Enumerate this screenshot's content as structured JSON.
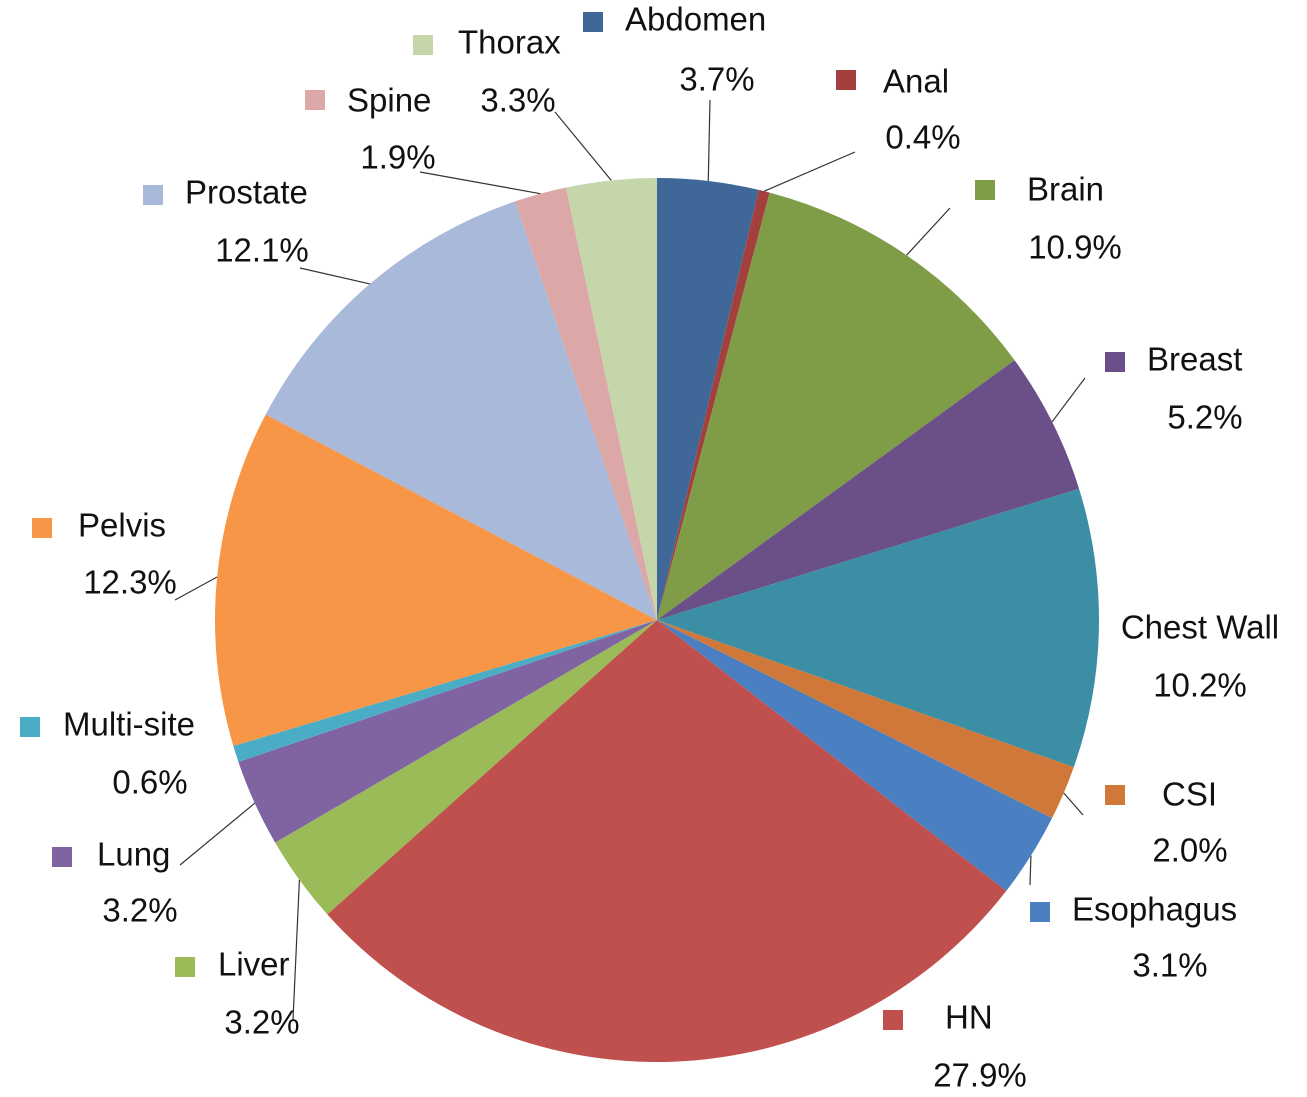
{
  "chart_data": {
    "type": "pie",
    "categories": [
      "Abdomen",
      "Anal",
      "Brain",
      "Breast",
      "Chest Wall",
      "CSI",
      "Esophagus",
      "HN",
      "Liver",
      "Lung",
      "Multi-site",
      "Pelvis",
      "Prostate",
      "Spine",
      "Thorax"
    ],
    "values": [
      3.7,
      0.4,
      10.9,
      5.2,
      10.2,
      2.0,
      3.1,
      27.9,
      3.2,
      3.2,
      0.6,
      12.3,
      12.1,
      1.9,
      3.3
    ],
    "value_labels": [
      "3.7%",
      "0.4%",
      "10.9%",
      "5.2%",
      "10.2%",
      "2.0%",
      "3.1%",
      "27.9%",
      "3.2%",
      "3.2%",
      "0.6%",
      "12.3%",
      "12.1%",
      "1.9%",
      "3.3%"
    ],
    "colors": [
      "#3f6899",
      "#a33f3d",
      "#7f9c46",
      "#6a4f88",
      "#3b8ea3",
      "#d0783a",
      "#4a7fc1",
      "#c0504d",
      "#9bbb59",
      "#8064a2",
      "#4bacc6",
      "#f79646",
      "#a9b9d9",
      "#dba7a7",
      "#c6d6ab"
    ]
  }
}
